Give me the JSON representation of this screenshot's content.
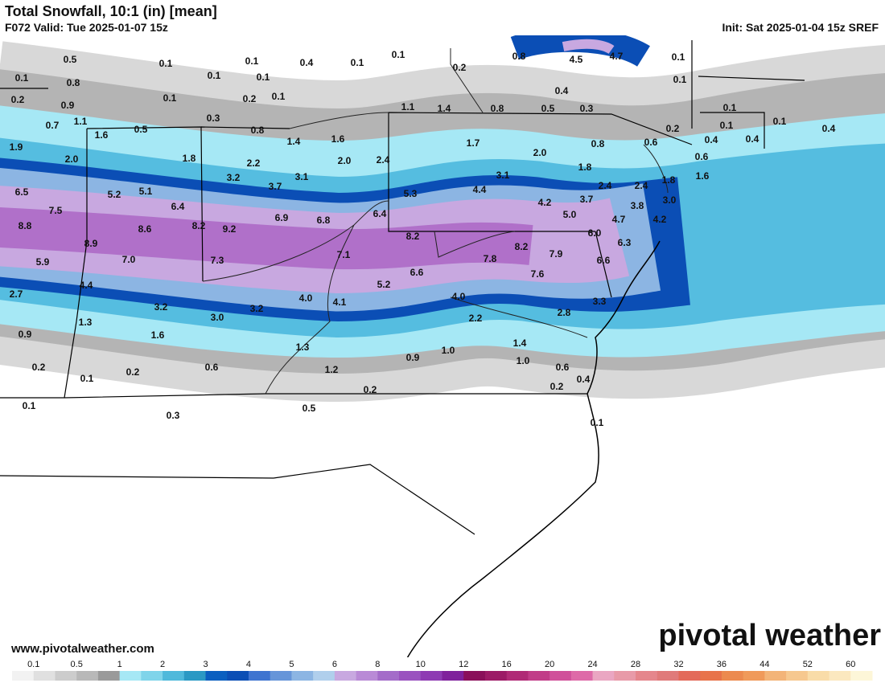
{
  "header": {
    "title": "Total Snowfall, 10:1 (in) [mean]",
    "valid": "F072 Valid: Tue 2025-01-07 15z",
    "init": "Init: Sat 2025-01-04 15z SREF"
  },
  "map": {
    "labels": [
      "0.5",
      "0.1",
      "0.1",
      "0.4",
      "0.1",
      "0.1",
      "0.2",
      "0.8",
      "4.5",
      "4.7",
      "0.1",
      "0.1",
      "0.8",
      "0.1",
      "0.1",
      "0.1",
      "0.2",
      "0.9",
      "0.1",
      "0.2",
      "0.1",
      "0.4",
      "1.1",
      "1.4",
      "0.8",
      "0.5",
      "0.3",
      "0.1",
      "0.3",
      "0.7",
      "1.1",
      "0.5",
      "0.8",
      "0.1",
      "0.1",
      "0.2",
      "0.4",
      "1.6",
      "1.4",
      "1.6",
      "1.7",
      "0.8",
      "0.6",
      "0.4",
      "0.4",
      "1.9",
      "0.6",
      "1.8",
      "2.0",
      "2.2",
      "2.0",
      "2.4",
      "2.0",
      "1.8",
      "1.6",
      "3.2",
      "3.1",
      "3.7",
      "3.1",
      "2.4",
      "2.4",
      "1.8",
      "6.5",
      "5.2",
      "5.1",
      "5.3",
      "4.4",
      "4.2",
      "3.7",
      "3.0",
      "7.5",
      "6.4",
      "6.9",
      "6.8",
      "6.4",
      "5.0",
      "3.8",
      "4.7",
      "4.2",
      "8.8",
      "8.6",
      "8.2",
      "9.2",
      "8.2",
      "6.0",
      "6.3",
      "8.9",
      "8.2",
      "7.9",
      "5.9",
      "7.0",
      "7.3",
      "7.1",
      "7.8",
      "6.6",
      "6.6",
      "7.6",
      "4.4",
      "5.2",
      "2.7",
      "4.0",
      "4.1",
      "4.0",
      "3.3",
      "3.2",
      "3.2",
      "2.8",
      "3.0",
      "2.2",
      "1.3",
      "0.9",
      "1.6",
      "1.4",
      "1.3",
      "1.0",
      "0.9",
      "1.0",
      "0.2",
      "0.6",
      "1.2",
      "0.6",
      "0.1",
      "0.2",
      "0.4",
      "0.2",
      "0.2",
      "0.1",
      "0.3",
      "0.5",
      "0.1"
    ]
  },
  "colorbar": {
    "labels": [
      0.1,
      0.5,
      1,
      2,
      3,
      4,
      5,
      6,
      8,
      10,
      12,
      16,
      20,
      24,
      28,
      32,
      36,
      44,
      52,
      60
    ],
    "colors": [
      "#f2f2f2",
      "#e0e0e0",
      "#cccccc",
      "#b8b8b8",
      "#9a9a9a",
      "#a6e8f5",
      "#7fd4ea",
      "#4fb9db",
      "#2a99c4",
      "#0a5fc0",
      "#0b4eb5",
      "#3f74d0",
      "#6695d9",
      "#8cb5e3",
      "#b0cfec",
      "#c8a8e0",
      "#b98ad6",
      "#a46cc9",
      "#9a52bf",
      "#8e3bb3",
      "#7f219c",
      "#8a0f5a",
      "#9c1a66",
      "#b02a76",
      "#c13c88",
      "#d0509a",
      "#de6aa8",
      "#eaa6c2",
      "#e89aa8",
      "#e5868c",
      "#e07a7a",
      "#e36a5a",
      "#e8734a",
      "#ec8a4f",
      "#f09a5a",
      "#f3b478",
      "#f6c88f",
      "#f9dca8",
      "#fbe8bf",
      "#fdf6d8"
    ]
  },
  "footer": {
    "url": "www.pivotalweather.com",
    "logo": "pivotal weather"
  }
}
